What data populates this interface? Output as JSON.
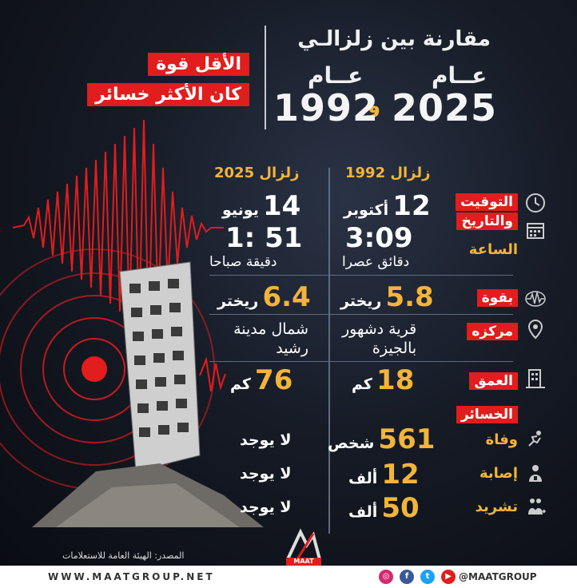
{
  "title": {
    "headline": "مقارنة بين زلزالـي",
    "year_label": "عــام",
    "year_a": "2025",
    "conj": "و",
    "year_b": "1992"
  },
  "tags": {
    "weakest": "الأقل قوة",
    "most_losses": "كان الأكثر خسائر"
  },
  "columns": {
    "quake_1992": "زلزال 1992",
    "quake_2025": "زلزال 2025"
  },
  "labels": {
    "timing": "التوقيت",
    "date": "والتاريخ",
    "hour": "الساعة",
    "magnitude": "بقوة",
    "epicenter": "مركزه",
    "depth": "العمق",
    "losses": "الخسائر",
    "deaths": "وفاة",
    "injuries": "إصابة",
    "displaced": "تشريد"
  },
  "quake_1992": {
    "day": "12",
    "month": "أكتوبر",
    "time": "3:09",
    "minutes_word": "دقائق",
    "period": "عصرا",
    "magnitude": "5.8",
    "magnitude_unit": "ريختر",
    "epicenter_line1": "قرية دشهور",
    "epicenter_line2": "بالجيزة",
    "depth": "18",
    "depth_unit": "كم",
    "deaths": "561",
    "deaths_unit": "شخص",
    "injuries": "12",
    "injuries_unit": "ألف",
    "displaced": "50",
    "displaced_unit": "ألف"
  },
  "quake_2025": {
    "day": "14",
    "month": "يونيو",
    "time": "1: 51",
    "minutes_word": "دقيقة",
    "period": "صباحا",
    "magnitude": "6.4",
    "magnitude_unit": "ريختر",
    "epicenter_line1": "شمال مدينة",
    "epicenter_line2": "رشيد",
    "depth": "76",
    "depth_unit": "كم",
    "deaths": "لا يوجد",
    "injuries": "لا يوجد",
    "displaced": "لا يوجد"
  },
  "source": "المصدر: الهيئة العامة للاستعلامات",
  "logo_text": "MAAT",
  "footer": {
    "url": "WWW.MAATGROUP.NET",
    "handle": "@MAATGROUP"
  },
  "colors": {
    "accent_red": "#e11d1d",
    "accent_gold": "#f2b43a",
    "background": "#161b26"
  },
  "icons": [
    "clock-icon",
    "calendar-icon",
    "seismograph-icon",
    "location-pin-icon",
    "building-icon",
    "injured-person-icon",
    "person-bandage-icon",
    "displaced-people-icon"
  ]
}
